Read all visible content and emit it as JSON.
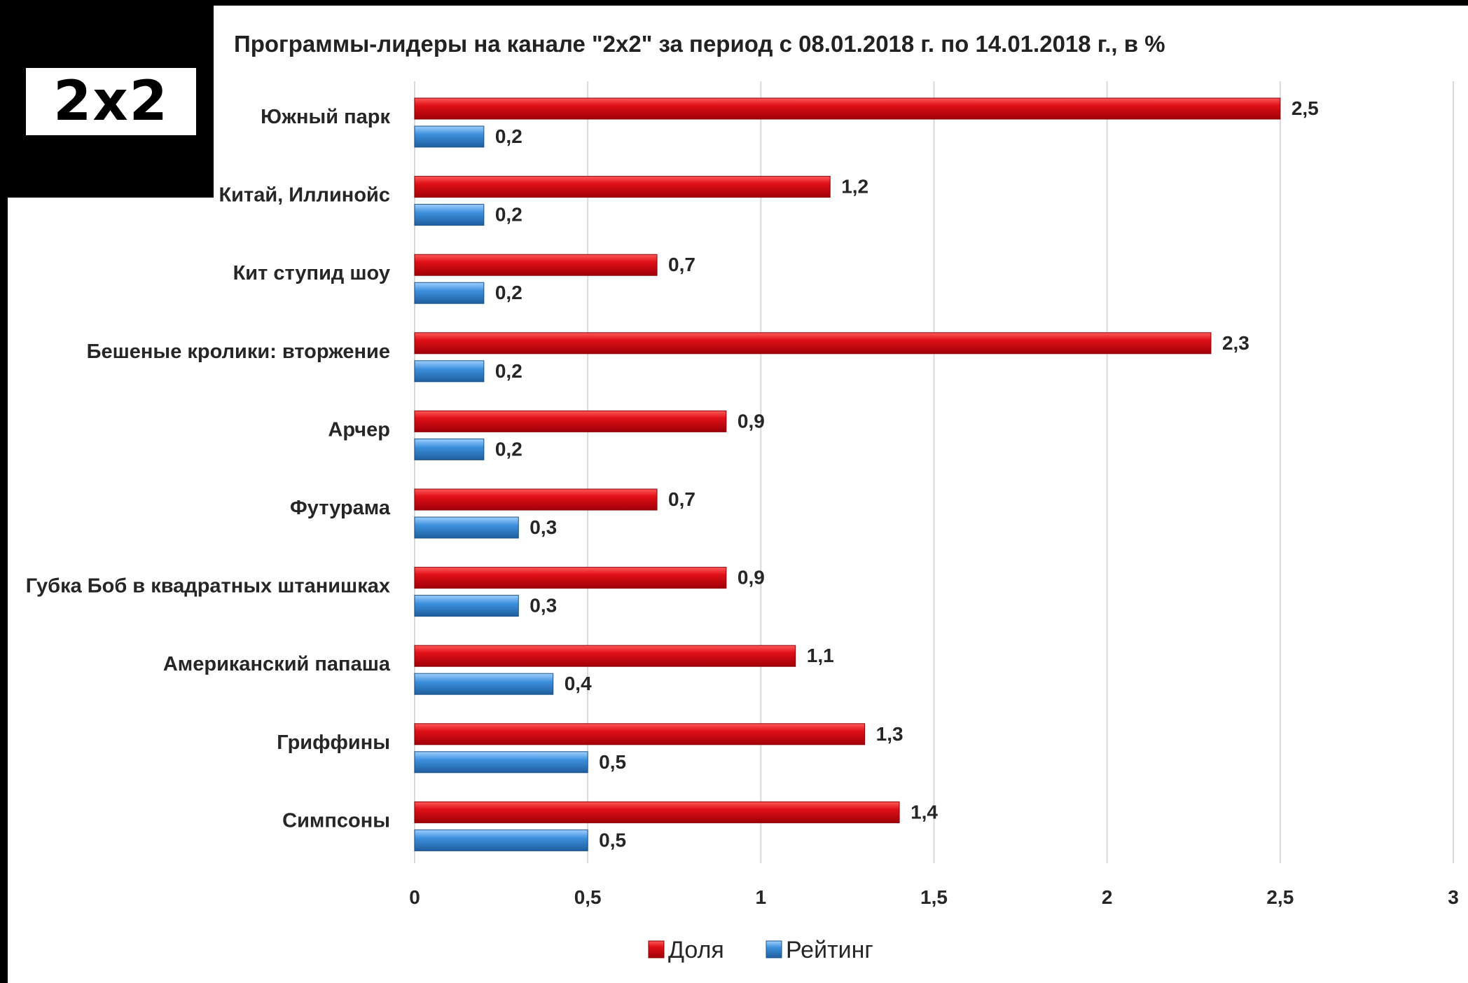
{
  "logo": {
    "text": "2x2"
  },
  "chart_data": {
    "type": "bar",
    "orientation": "horizontal",
    "title": "Программы-лидеры на канале \"2x2\" за период с 08.01.2018 г. по 14.01.2018 г., в %",
    "categories": [
      "Южный парк",
      "Китай, Иллинойс",
      "Кит ступид шоу",
      "Бешеные кролики: вторжение",
      "Арчер",
      "Футурама",
      "Губка Боб в квадратных штанишках",
      "Американский папаша",
      "Гриффины",
      "Симпсоны"
    ],
    "series": [
      {
        "name": "Доля",
        "color": "#e0101a",
        "values": [
          2.5,
          1.2,
          0.7,
          2.3,
          0.9,
          0.7,
          0.9,
          1.1,
          1.3,
          1.4
        ],
        "value_labels": [
          "2,5",
          "1,2",
          "0,7",
          "2,3",
          "0,9",
          "0,7",
          "0,9",
          "1,1",
          "1,3",
          "1,4"
        ]
      },
      {
        "name": "Рейтинг",
        "color": "#3a8fd8",
        "values": [
          0.2,
          0.2,
          0.2,
          0.2,
          0.2,
          0.3,
          0.3,
          0.4,
          0.5,
          0.5
        ],
        "value_labels": [
          "0,2",
          "0,2",
          "0,2",
          "0,2",
          "0,2",
          "0,3",
          "0,3",
          "0,4",
          "0,5",
          "0,5"
        ]
      }
    ],
    "xlim": [
      0,
      3
    ],
    "xticks": [
      0,
      0.5,
      1,
      1.5,
      2,
      2.5,
      3
    ],
    "xtick_labels": [
      "0",
      "0,5",
      "1",
      "1,5",
      "2",
      "2,5",
      "3"
    ],
    "grid": "vertical",
    "legend_position": "bottom-center"
  }
}
